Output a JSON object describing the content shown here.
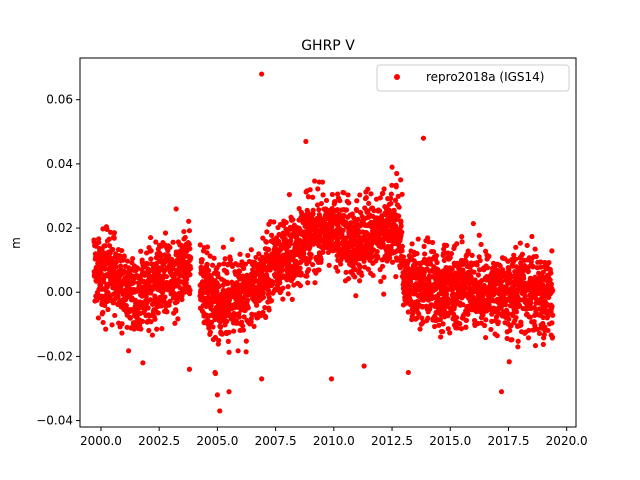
{
  "chart_data": {
    "type": "scatter",
    "title": "GHRP V",
    "xlabel": "",
    "ylabel": "m",
    "xlim": [
      1999.1,
      2020.4
    ],
    "ylim": [
      -0.042,
      0.073
    ],
    "xticks": [
      2000.0,
      2002.5,
      2005.0,
      2007.5,
      2010.0,
      2012.5,
      2015.0,
      2017.5,
      2020.0
    ],
    "xtick_labels": [
      "2000.0",
      "2002.5",
      "2005.0",
      "2007.5",
      "2010.0",
      "2012.5",
      "2015.0",
      "2017.5",
      "2020.0"
    ],
    "yticks": [
      -0.04,
      -0.02,
      0.0,
      0.02,
      0.04,
      0.06
    ],
    "ytick_labels": [
      "−0.04",
      "−0.02",
      "0.00",
      "0.02",
      "0.04",
      "0.06"
    ],
    "grid": false,
    "legend": {
      "placement": "top-right"
    },
    "series": [
      {
        "name": "repro2018a (IGS14)",
        "color": "#ff0000",
        "marker": "circle",
        "trend": [
          [
            1999.7,
            0.007
          ],
          [
            2000.5,
            0.005
          ],
          [
            2001.0,
            0.001
          ],
          [
            2001.5,
            -0.002
          ],
          [
            2002.0,
            0.001
          ],
          [
            2002.5,
            0.004
          ],
          [
            2003.0,
            0.005
          ],
          [
            2003.5,
            0.008
          ],
          [
            2003.8,
            0.009
          ],
          [
            2004.3,
            0.002
          ],
          [
            2004.8,
            -0.002
          ],
          [
            2005.3,
            -0.004
          ],
          [
            2005.8,
            -0.001
          ],
          [
            2006.3,
            0.001
          ],
          [
            2006.8,
            0.003
          ],
          [
            2007.3,
            0.006
          ],
          [
            2007.8,
            0.01
          ],
          [
            2008.3,
            0.012
          ],
          [
            2008.8,
            0.016
          ],
          [
            2009.3,
            0.019
          ],
          [
            2009.8,
            0.02
          ],
          [
            2010.3,
            0.018
          ],
          [
            2010.8,
            0.016
          ],
          [
            2011.3,
            0.017
          ],
          [
            2011.8,
            0.018
          ],
          [
            2012.3,
            0.019
          ],
          [
            2012.8,
            0.02
          ],
          [
            2013.0,
            0.004
          ],
          [
            2014.0,
            0.002
          ],
          [
            2015.0,
            0.001
          ],
          [
            2016.0,
            0.0
          ],
          [
            2017.0,
            -0.001
          ],
          [
            2018.0,
            0.0
          ],
          [
            2019.0,
            -0.001
          ],
          [
            2019.4,
            -0.002
          ]
        ],
        "gaps": [
          [
            2003.85,
            2004.25
          ]
        ],
        "outliers": [
          [
            2006.9,
            0.068
          ],
          [
            2008.8,
            0.047
          ],
          [
            2013.85,
            0.048
          ],
          [
            2012.5,
            0.039
          ],
          [
            2012.7,
            0.037
          ],
          [
            2005.1,
            -0.037
          ],
          [
            2005.0,
            -0.032
          ],
          [
            2005.5,
            -0.031
          ],
          [
            2006.9,
            -0.027
          ],
          [
            2009.9,
            -0.027
          ],
          [
            2017.2,
            -0.031
          ],
          [
            2003.8,
            -0.024
          ],
          [
            2004.9,
            -0.025
          ],
          [
            2013.2,
            -0.025
          ],
          [
            2011.3,
            -0.023
          ],
          [
            2001.8,
            -0.022
          ]
        ]
      }
    ]
  }
}
